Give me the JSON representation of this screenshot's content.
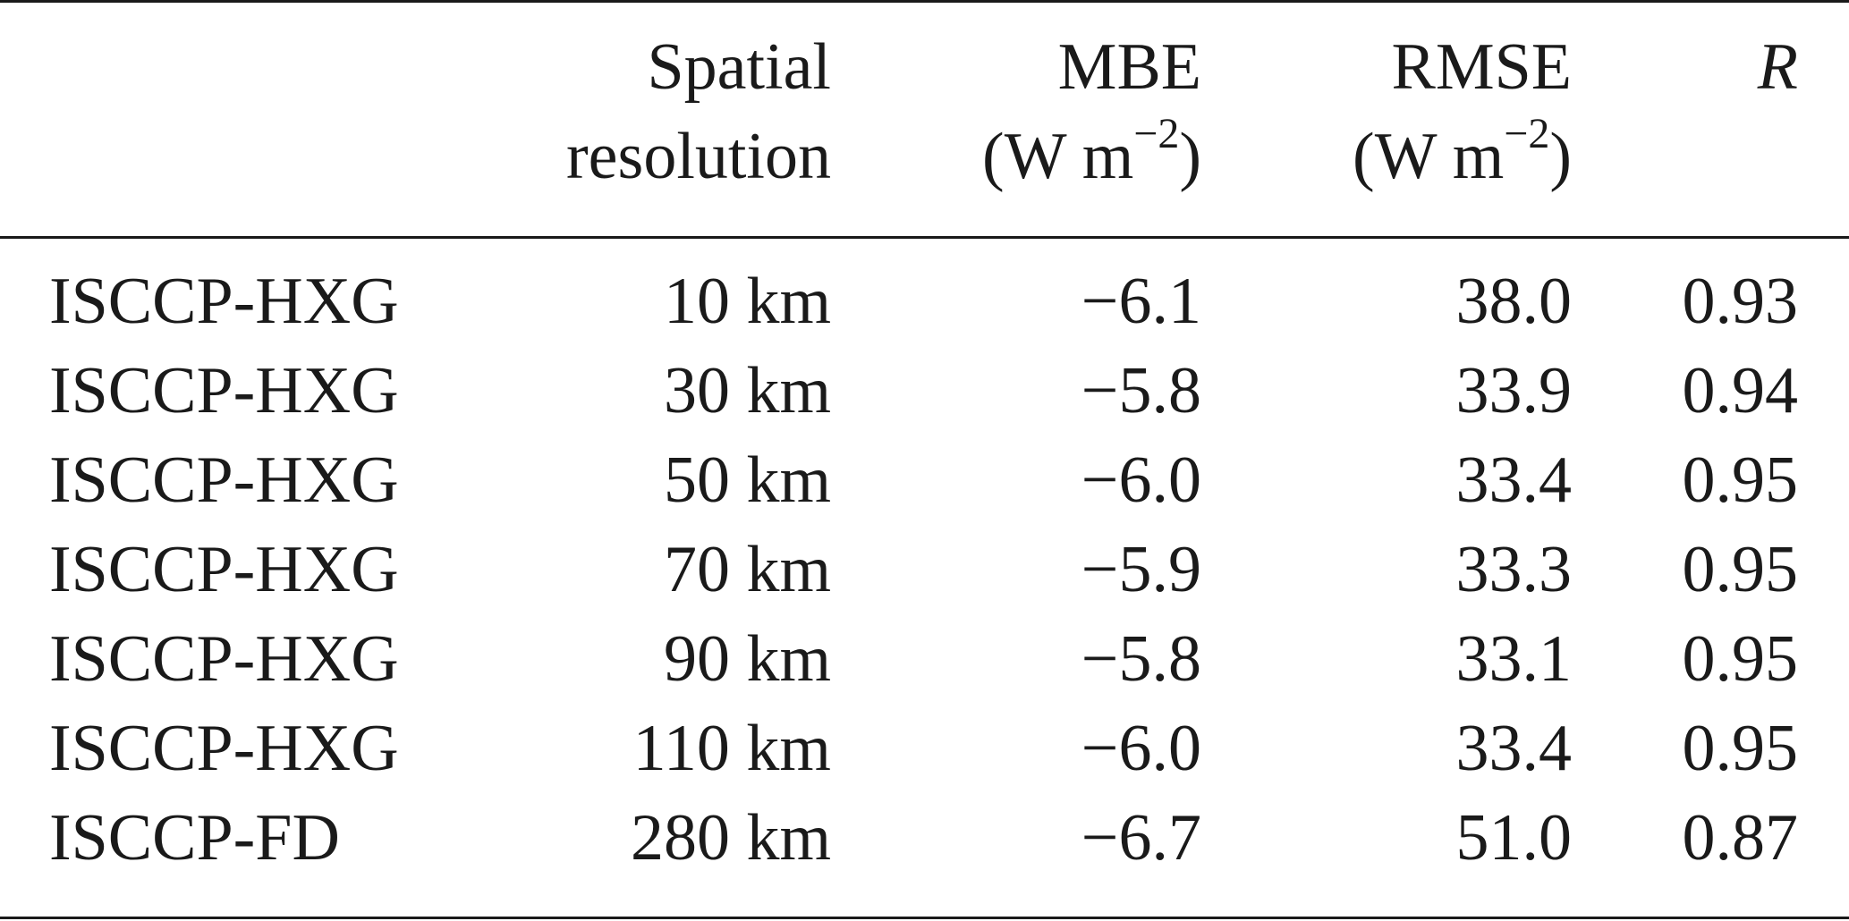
{
  "table": {
    "headers": {
      "name": "",
      "resolution_line1": "Spatial",
      "resolution_line2": "resolution",
      "mbe_line1": "MBE",
      "mbe_unit_open": "(W m",
      "mbe_unit_exp": "−2",
      "mbe_unit_close": ")",
      "rmse_line1": "RMSE",
      "rmse_unit_open": "(W m",
      "rmse_unit_exp": "−2",
      "rmse_unit_close": ")",
      "r": "R"
    },
    "rows": [
      {
        "name": "ISCCP-HXG",
        "resolution": "10 km",
        "mbe": "−6.1",
        "rmse": "38.0",
        "r": "0.93"
      },
      {
        "name": "ISCCP-HXG",
        "resolution": "30 km",
        "mbe": "−5.8",
        "rmse": "33.9",
        "r": "0.94"
      },
      {
        "name": "ISCCP-HXG",
        "resolution": "50 km",
        "mbe": "−6.0",
        "rmse": "33.4",
        "r": "0.95"
      },
      {
        "name": "ISCCP-HXG",
        "resolution": "70 km",
        "mbe": "−5.9",
        "rmse": "33.3",
        "r": "0.95"
      },
      {
        "name": "ISCCP-HXG",
        "resolution": "90 km",
        "mbe": "−5.8",
        "rmse": "33.1",
        "r": "0.95"
      },
      {
        "name": "ISCCP-HXG",
        "resolution": "110 km",
        "mbe": "−6.0",
        "rmse": "33.4",
        "r": "0.95"
      },
      {
        "name": "ISCCP-FD",
        "resolution": "280 km",
        "mbe": "−6.7",
        "rmse": "51.0",
        "r": "0.87"
      }
    ]
  }
}
